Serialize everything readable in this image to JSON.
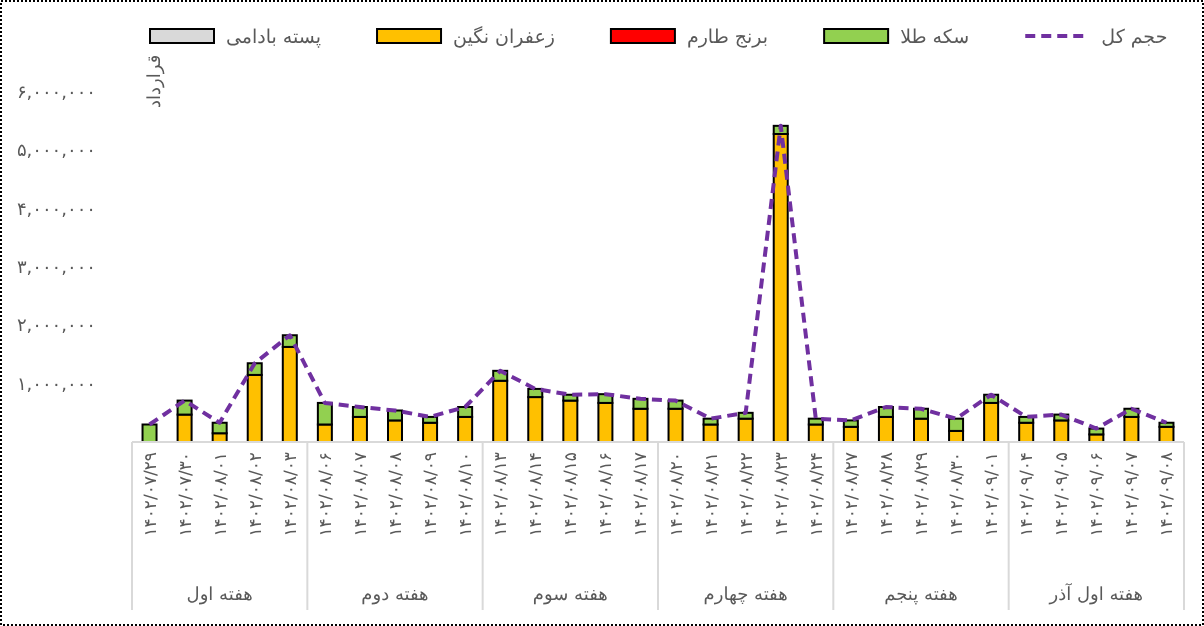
{
  "chart_data": {
    "type": "bar",
    "stacked": true,
    "ylabel": "قرارداد",
    "legend": "top",
    "grid": false,
    "categories": [
      "۱۴۰۲/۰۷/۲۹",
      "۱۴۰۲/۰۷/۳۰",
      "۱۴۰۲/۰۸/۰۱",
      "۱۴۰۲/۰۸/۰۲",
      "۱۴۰۲/۰۸/۰۳",
      "۱۴۰۲/۰۸/۰۶",
      "۱۴۰۲/۰۸/۰۷",
      "۱۴۰۲/۰۸/۰۸",
      "۱۴۰۲/۰۸/۰۹",
      "۱۴۰۲/۰۸/۱۰",
      "۱۴۰۲/۰۸/۱۳",
      "۱۴۰۲/۰۸/۱۴",
      "۱۴۰۲/۰۸/۱۵",
      "۱۴۰۲/۰۸/۱۶",
      "۱۴۰۲/۰۸/۱۷",
      "۱۴۰۲/۰۸/۲۰",
      "۱۴۰۲/۰۸/۲۱",
      "۱۴۰۲/۰۸/۲۲",
      "۱۴۰۲/۰۸/۲۳",
      "۱۴۰۲/۰۸/۲۴",
      "۱۴۰۲/۰۸/۲۷",
      "۱۴۰۲/۰۸/۲۸",
      "۱۴۰۲/۰۸/۲۹",
      "۱۴۰۲/۰۸/۳۰",
      "۱۴۰۲/۰۹/۰۱",
      "۱۴۰۲/۰۹/۰۴",
      "۱۴۰۲/۰۹/۰۵",
      "۱۴۰۲/۰۹/۰۶",
      "۱۴۰۲/۰۹/۰۷",
      "۱۴۰۲/۰۹/۰۸"
    ],
    "annotations": [
      "هفته اول",
      "هفته دوم",
      "هفته سوم",
      "هفته چهارم",
      "هفته پنجم",
      "هفته اول آذر"
    ],
    "ylim": [
      0,
      6000000
    ],
    "yticks": [
      {
        "value": 1000000,
        "label": "۱,۰۰۰,۰۰۰"
      },
      {
        "value": 2000000,
        "label": "۲,۰۰۰,۰۰۰"
      },
      {
        "value": 3000000,
        "label": "۳,۰۰۰,۰۰۰"
      },
      {
        "value": 4000000,
        "label": "۴,۰۰۰,۰۰۰"
      },
      {
        "value": 5000000,
        "label": "۵,۰۰۰,۰۰۰"
      },
      {
        "value": 6000000,
        "label": "۶,۰۰۰,۰۰۰"
      }
    ],
    "series": [
      {
        "name": "پسته بادامی",
        "color": "#d9d9d9",
        "values": [
          0,
          0,
          0,
          0,
          0,
          0,
          0,
          0,
          0,
          0,
          0,
          0,
          0,
          0,
          0,
          0,
          0,
          0,
          0,
          0,
          0,
          0,
          0,
          0,
          0,
          0,
          0,
          0,
          0,
          0
        ]
      },
      {
        "name": "زعفران نگین",
        "color": "#ffc000",
        "values": [
          0,
          470000,
          150000,
          1150000,
          1630000,
          300000,
          430000,
          370000,
          330000,
          430000,
          1050000,
          770000,
          710000,
          670000,
          570000,
          570000,
          300000,
          400000,
          5280000,
          300000,
          260000,
          430000,
          400000,
          190000,
          670000,
          330000,
          370000,
          130000,
          430000,
          260000
        ]
      },
      {
        "name": "برنج طارم",
        "color": "#ff0000",
        "values": [
          0,
          0,
          0,
          0,
          0,
          0,
          0,
          0,
          0,
          0,
          0,
          0,
          0,
          0,
          0,
          0,
          0,
          0,
          0,
          0,
          0,
          0,
          0,
          0,
          0,
          0,
          0,
          0,
          0,
          0
        ]
      },
      {
        "name": "سکه طلا",
        "color": "#92d050",
        "values": [
          300000,
          240000,
          180000,
          200000,
          200000,
          370000,
          170000,
          170000,
          100000,
          170000,
          170000,
          140000,
          100000,
          150000,
          170000,
          140000,
          100000,
          100000,
          140000,
          100000,
          110000,
          170000,
          170000,
          210000,
          140000,
          100000,
          100000,
          100000,
          140000,
          70000
        ]
      },
      {
        "name": "حجم کل",
        "type": "line",
        "line_style": "dashed",
        "marker": "none",
        "color": "#7030a0",
        "values": [
          300000,
          710000,
          330000,
          1350000,
          1830000,
          670000,
          600000,
          540000,
          430000,
          600000,
          1220000,
          910000,
          810000,
          820000,
          740000,
          710000,
          400000,
          500000,
          5420000,
          400000,
          370000,
          600000,
          570000,
          400000,
          810000,
          430000,
          470000,
          230000,
          570000,
          330000
        ]
      }
    ]
  }
}
